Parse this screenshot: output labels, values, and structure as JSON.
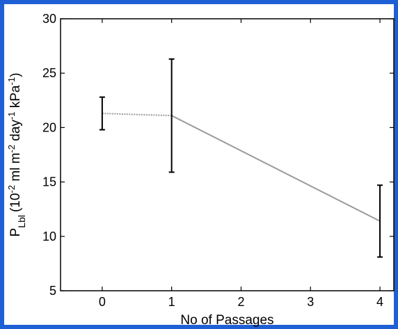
{
  "colors": {
    "frame": "#1f5fd6",
    "line": "#9a9a9a",
    "axis": "#000000"
  },
  "chart_data": {
    "type": "line",
    "title": "",
    "xlabel": "No of Passages",
    "ylabel_parts": {
      "p": "P",
      "sub": "Lbl",
      "open": "(10",
      "exp1": "-2",
      "mid1": " ml m",
      "exp2": "-2",
      "mid2": " day",
      "exp3": "-1",
      "mid3": " kPa",
      "exp4": "-1",
      "close": ")"
    },
    "xlim": [
      -0.6,
      4.2
    ],
    "ylim": [
      5,
      30
    ],
    "xticks": [
      0,
      1,
      2,
      3,
      4
    ],
    "yticks": [
      5,
      10,
      15,
      20,
      25,
      30
    ],
    "grid": false,
    "series": [
      {
        "points": [
          {
            "x": 0,
            "y": 21.3,
            "err_low": 19.8,
            "err_high": 22.8
          },
          {
            "x": 1,
            "y": 21.1,
            "err_low": 15.9,
            "err_high": 26.3
          },
          {
            "x": 4,
            "y": 11.4,
            "err_low": 8.1,
            "err_high": 14.7
          }
        ]
      }
    ]
  }
}
